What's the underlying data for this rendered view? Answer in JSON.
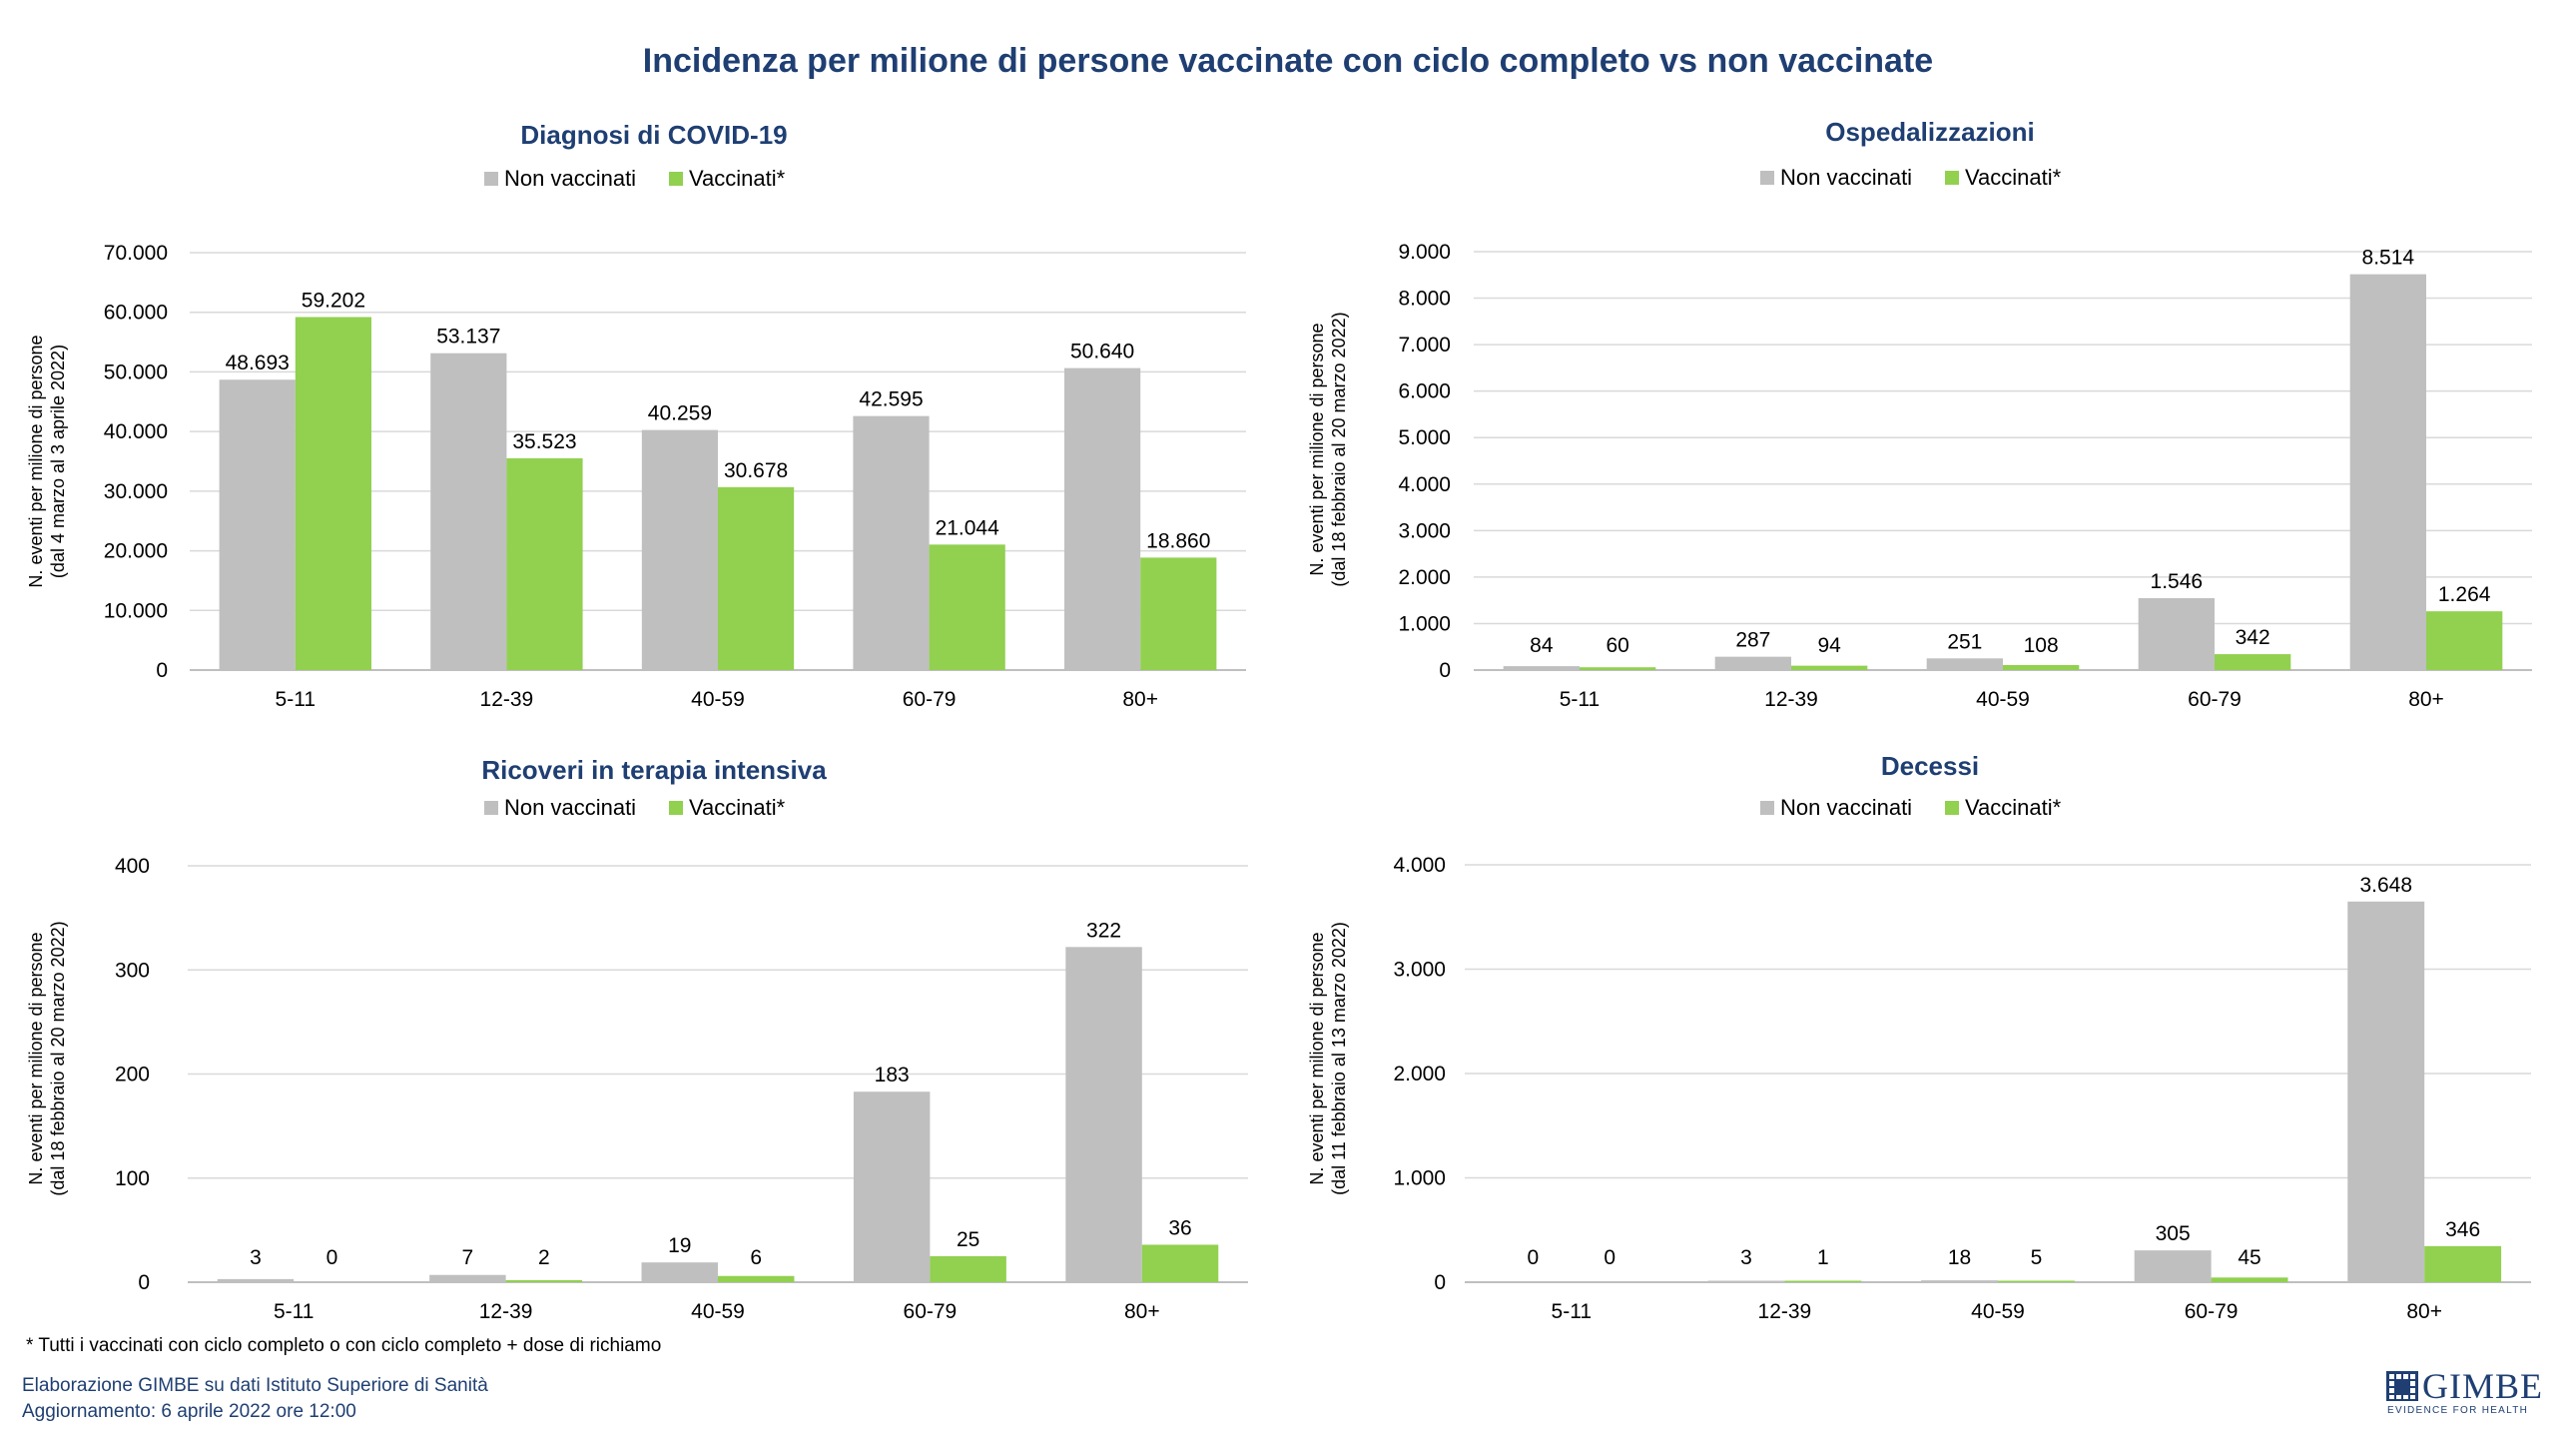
{
  "title": "Incidenza per milione di persone vaccinate con ciclo completo vs non vaccinate",
  "footnote": "* Tutti i vaccinati con ciclo completo o con ciclo completo +  dose di richiamo",
  "credits": {
    "line1": "Elaborazione GIMBE su dati Istituto Superiore di Sanità",
    "line2": "Aggiornamento: 6 aprile 2022 ore 12:00"
  },
  "logo": {
    "name": "GIMBE",
    "tagline": "EVIDENCE FOR HEALTH"
  },
  "colors": {
    "non_vaccinati": "#bfbfbf",
    "vaccinati": "#92d050",
    "title": "#1f3f73",
    "grid": "#d9d9d9"
  },
  "chart_data": [
    {
      "type": "bar",
      "title": "Diagnosi di COVID-19",
      "ylabel": [
        "N. eventi per milione di persone",
        "(dal 4  marzo al 3  aprile 2022)"
      ],
      "categories": [
        "5-11",
        "12-39",
        "40-59",
        "60-79",
        "80+"
      ],
      "ylim": [
        0,
        70000
      ],
      "yticks": [
        0,
        10000,
        20000,
        30000,
        40000,
        50000,
        60000,
        70000
      ],
      "ytick_labels": [
        "0",
        "10.000",
        "20.000",
        "30.000",
        "40.000",
        "50.000",
        "60.000",
        "70.000"
      ],
      "legend_position": "top",
      "series": [
        {
          "name": "Non vaccinati",
          "values": [
            48693,
            53137,
            40259,
            42595,
            50640
          ],
          "labels": [
            "48.693",
            "53.137",
            "40.259",
            "42.595",
            "50.640"
          ]
        },
        {
          "name": "Vaccinati*",
          "values": [
            59202,
            35523,
            30678,
            21044,
            18860
          ],
          "labels": [
            "59.202",
            "35.523",
            "30.678",
            "21.044",
            "18.860"
          ]
        }
      ]
    },
    {
      "type": "bar",
      "title": "Ospedalizzazioni",
      "ylabel": [
        "N. eventi per milione di persone",
        "(dal 18  febbraio al 20  marzo 2022)"
      ],
      "categories": [
        "5-11",
        "12-39",
        "40-59",
        "60-79",
        "80+"
      ],
      "ylim": [
        0,
        9000
      ],
      "yticks": [
        0,
        1000,
        2000,
        3000,
        4000,
        5000,
        6000,
        7000,
        8000,
        9000
      ],
      "ytick_labels": [
        "0",
        "1.000",
        "2.000",
        "3.000",
        "4.000",
        "5.000",
        "6.000",
        "7.000",
        "8.000",
        "9.000"
      ],
      "legend_position": "top",
      "series": [
        {
          "name": "Non vaccinati",
          "values": [
            84,
            287,
            251,
            1546,
            8514
          ],
          "labels": [
            "84",
            "287",
            "251",
            "1.546",
            "8.514"
          ]
        },
        {
          "name": "Vaccinati*",
          "values": [
            60,
            94,
            108,
            342,
            1264
          ],
          "labels": [
            "60",
            "94",
            "108",
            "342",
            "1.264"
          ]
        }
      ]
    },
    {
      "type": "bar",
      "title": "Ricoveri in terapia intensiva",
      "ylabel": [
        "N. eventi per milione di persone",
        "(dal 18  febbraio al 20  marzo 2022)"
      ],
      "categories": [
        "5-11",
        "12-39",
        "40-59",
        "60-79",
        "80+"
      ],
      "ylim": [
        0,
        400
      ],
      "yticks": [
        0,
        100,
        200,
        300,
        400
      ],
      "ytick_labels": [
        "0",
        "100",
        "200",
        "300",
        "400"
      ],
      "legend_position": "top",
      "series": [
        {
          "name": "Non vaccinati",
          "values": [
            3,
            7,
            19,
            183,
            322
          ],
          "labels": [
            "3",
            "7",
            "19",
            "183",
            "322"
          ]
        },
        {
          "name": "Vaccinati*",
          "values": [
            0,
            2,
            6,
            25,
            36
          ],
          "labels": [
            "0",
            "2",
            "6",
            "25",
            "36"
          ]
        }
      ]
    },
    {
      "type": "bar",
      "title": "Decessi",
      "ylabel": [
        "N. eventi per milione di persone",
        "(dal 11  febbraio al 13  marzo 2022)"
      ],
      "categories": [
        "5-11",
        "12-39",
        "40-59",
        "60-79",
        "80+"
      ],
      "ylim": [
        0,
        4000
      ],
      "yticks": [
        0,
        1000,
        2000,
        3000,
        4000
      ],
      "ytick_labels": [
        "0",
        "1.000",
        "2.000",
        "3.000",
        "4.000"
      ],
      "legend_position": "top",
      "series": [
        {
          "name": "Non vaccinati",
          "values": [
            0,
            3,
            18,
            305,
            3648
          ],
          "labels": [
            "0",
            "3",
            "18",
            "305",
            "3.648"
          ]
        },
        {
          "name": "Vaccinati*",
          "values": [
            0,
            1,
            5,
            45,
            346
          ],
          "labels": [
            "0",
            "1",
            "5",
            "45",
            "346"
          ]
        }
      ]
    }
  ]
}
